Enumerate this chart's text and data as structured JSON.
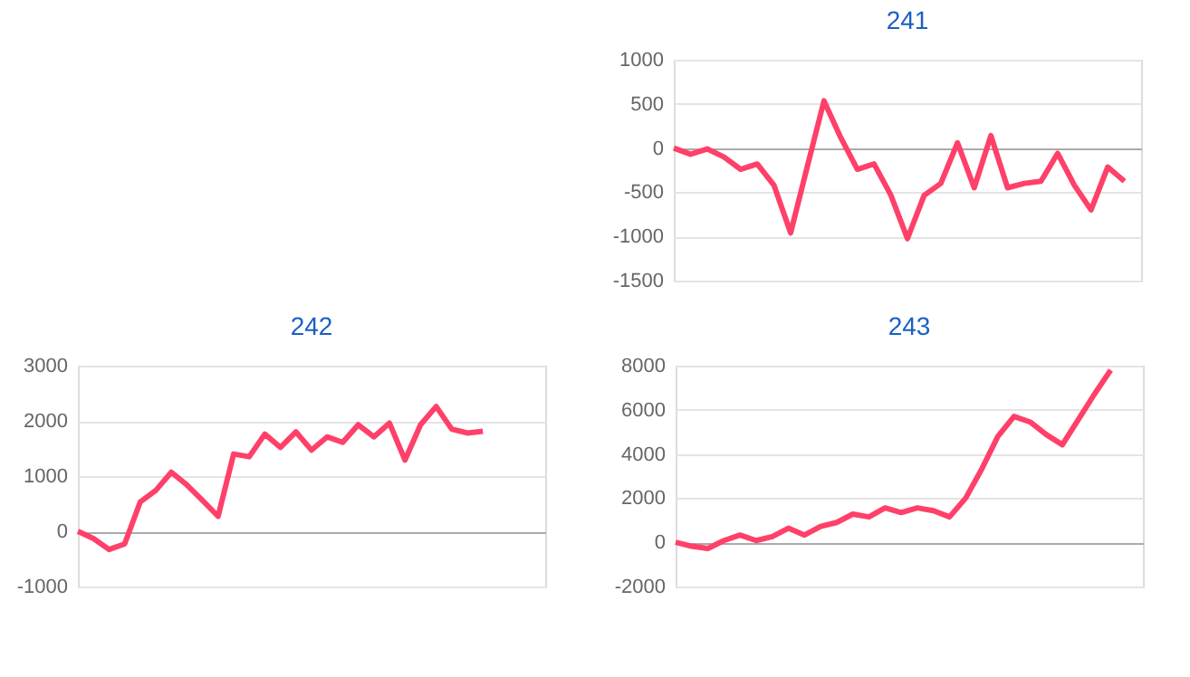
{
  "chart_data": [
    {
      "type": "line",
      "title": "241",
      "categories": [
        null,
        null,
        null,
        null,
        null,
        null,
        null,
        null,
        null,
        null,
        null,
        null,
        null,
        null,
        null,
        null,
        null,
        null,
        null,
        null,
        null,
        null,
        null,
        null,
        null,
        null,
        null,
        null,
        null
      ],
      "values": [
        0,
        -70,
        -10,
        -100,
        -240,
        -180,
        -420,
        -960,
        -210,
        535,
        120,
        -240,
        -180,
        -530,
        -1025,
        -535,
        -400,
        60,
        -450,
        140,
        -450,
        -400,
        -375,
        -60,
        -420,
        -700,
        -215,
        -375,
        null
      ],
      "color": "#ff4069",
      "ylim": [
        -1500,
        1000
      ],
      "yticks": [
        -1500,
        -1000,
        -500,
        0,
        500,
        1000
      ],
      "grid": "y",
      "tick_labels": "y"
    },
    {
      "type": "line",
      "title": "242",
      "categories": [
        null,
        null,
        null,
        null,
        null,
        null,
        null,
        null,
        null,
        null,
        null,
        null,
        null,
        null,
        null,
        null,
        null,
        null,
        null,
        null,
        null,
        null,
        null,
        null,
        null,
        null,
        null,
        null,
        null,
        null,
        null
      ],
      "values": [
        0,
        -130,
        -330,
        -230,
        530,
        740,
        1070,
        840,
        560,
        270,
        1400,
        1350,
        1760,
        1520,
        1800,
        1470,
        1710,
        1610,
        1930,
        1710,
        1960,
        1290,
        1930,
        2260,
        1850,
        1780,
        1810,
        null,
        null,
        null,
        null
      ],
      "color": "#ff4069",
      "ylim": [
        -1000,
        3000
      ],
      "yticks": [
        -1000,
        0,
        1000,
        2000,
        3000
      ],
      "grid": "y",
      "tick_labels": "y"
    },
    {
      "type": "line",
      "title": "243",
      "categories": [
        null,
        null,
        null,
        null,
        null,
        null,
        null,
        null,
        null,
        null,
        null,
        null,
        null,
        null,
        null,
        null,
        null,
        null,
        null,
        null,
        null,
        null,
        null,
        null,
        null,
        null,
        null,
        null,
        null,
        null
      ],
      "values": [
        0,
        -180,
        -280,
        80,
        330,
        80,
        260,
        640,
        330,
        720,
        900,
        1280,
        1150,
        1560,
        1350,
        1560,
        1430,
        1150,
        2000,
        3320,
        4800,
        5700,
        5450,
        4880,
        4420,
        5570,
        6720,
        7800,
        null,
        null
      ],
      "color": "#ff4069",
      "ylim": [
        -2000,
        8000
      ],
      "yticks": [
        -2000,
        0,
        2000,
        4000,
        6000,
        8000
      ],
      "grid": "y",
      "tick_labels": "y"
    }
  ]
}
